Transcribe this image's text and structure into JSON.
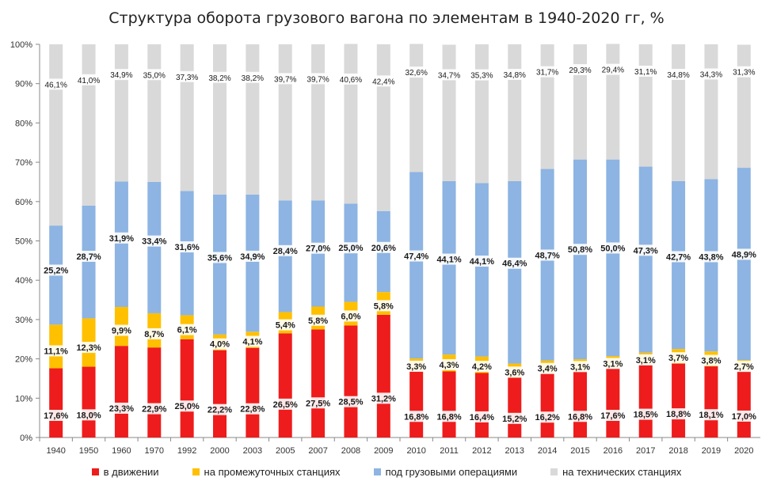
{
  "chart_data": {
    "type": "bar",
    "stacked": true,
    "title": "Структура оборота грузового вагона по элементам в 1940-2020 гг, %",
    "xlabel": "",
    "ylabel": "",
    "ylim": [
      0,
      100
    ],
    "y_ticks": [
      "0%",
      "10%",
      "20%",
      "30%",
      "40%",
      "50%",
      "60%",
      "70%",
      "80%",
      "90%",
      "100%"
    ],
    "grid": false,
    "legend_position": "bottom",
    "categories": [
      "1940",
      "1950",
      "1960",
      "1970",
      "1992",
      "2000",
      "2003",
      "2005",
      "2007",
      "2008",
      "2009",
      "2010",
      "2011",
      "2012",
      "2013",
      "2014",
      "2015",
      "2016",
      "2017",
      "2018",
      "2019",
      "2020"
    ],
    "series": [
      {
        "name": "в движении",
        "color": "#ee1c1c",
        "values": [
          17.6,
          18.0,
          23.3,
          22.9,
          25.0,
          22.2,
          22.8,
          26.5,
          27.5,
          28.5,
          31.2,
          16.8,
          16.8,
          16.4,
          15.2,
          16.2,
          16.8,
          17.6,
          18.5,
          18.8,
          18.1,
          17.0
        ],
        "labels": [
          "17,6%",
          "18,0%",
          "23,3%",
          "22,9%",
          "25,0%",
          "22,2%",
          "22,8%",
          "26,5%",
          "27,5%",
          "28,5%",
          "31,2%",
          "16,8%",
          "16,8%",
          "16,4%",
          "15,2%",
          "16,2%",
          "16,8%",
          "17,6%",
          "18,5%",
          "18,8%",
          "18,1%",
          "17,0%"
        ]
      },
      {
        "name": "на промежуточных станциях",
        "color": "#ffc000",
        "values": [
          11.1,
          12.3,
          9.9,
          8.7,
          6.1,
          4.0,
          4.1,
          5.4,
          5.8,
          6.0,
          5.8,
          3.3,
          4.3,
          4.2,
          3.6,
          3.4,
          3.1,
          3.1,
          3.1,
          3.7,
          3.8,
          2.7
        ],
        "labels": [
          "11,1%",
          "12,3%",
          "9,9%",
          "8,7%",
          "6,1%",
          "4,0%",
          "4,1%",
          "5,4%",
          "5,8%",
          "6,0%",
          "5,8%",
          "3,3%",
          "4,3%",
          "4,2%",
          "3,6%",
          "3,4%",
          "3,1%",
          "3,1%",
          "3,1%",
          "3,7%",
          "3,8%",
          "2,7%"
        ]
      },
      {
        "name": "под грузовыми операциями",
        "color": "#8db4e2",
        "values": [
          25.2,
          28.7,
          31.9,
          33.4,
          31.6,
          35.6,
          34.9,
          28.4,
          27.0,
          25.0,
          20.6,
          47.4,
          44.1,
          44.1,
          46.4,
          48.7,
          50.8,
          50.0,
          47.3,
          42.7,
          43.8,
          48.9
        ],
        "labels": [
          "25,2%",
          "28,7%",
          "31,9%",
          "33,4%",
          "31,6%",
          "35,6%",
          "34,9%",
          "28,4%",
          "27,0%",
          "25,0%",
          "20,6%",
          "47,4%",
          "44,1%",
          "44,1%",
          "46,4%",
          "48,7%",
          "50,8%",
          "50,0%",
          "47,3%",
          "42,7%",
          "43,8%",
          "48,9%"
        ]
      },
      {
        "name": "на технических станциях",
        "color": "#d9d9d9",
        "values": [
          46.1,
          41.0,
          34.9,
          35.0,
          37.3,
          38.2,
          38.2,
          39.7,
          39.7,
          40.6,
          42.4,
          32.6,
          34.7,
          35.3,
          34.8,
          31.7,
          29.3,
          29.4,
          31.1,
          34.8,
          34.3,
          31.3
        ],
        "labels": [
          "46,1%",
          "41,0%",
          "34,9%",
          "35,0%",
          "37,3%",
          "38,2%",
          "38,2%",
          "39,7%",
          "39,7%",
          "40,6%",
          "42,4%",
          "32,6%",
          "34,7%",
          "35,3%",
          "34,8%",
          "31,7%",
          "29,3%",
          "29,4%",
          "31,1%",
          "34,8%",
          "34,3%",
          "31,3%"
        ]
      }
    ]
  }
}
